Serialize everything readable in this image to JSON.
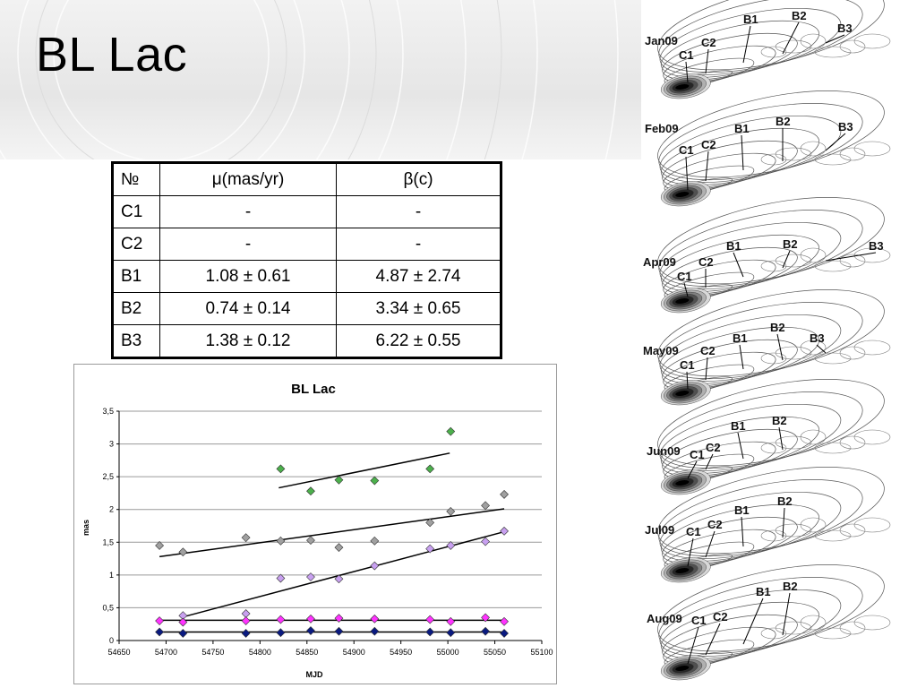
{
  "slide": {
    "title": "BL Lac"
  },
  "table": {
    "headers": [
      "№",
      "μ(mas/yr)",
      "β(c)"
    ],
    "rows": [
      [
        "C1",
        "-",
        "-"
      ],
      [
        "C2",
        "-",
        "-"
      ],
      [
        "B1",
        "1.08 ± 0.61",
        "4.87 ± 2.74"
      ],
      [
        "B2",
        "0.74 ± 0.14",
        "3.34 ± 0.65"
      ],
      [
        "B3",
        "1.38 ± 0.12",
        "6.22 ± 0.55"
      ]
    ]
  },
  "chart_data": {
    "type": "scatter",
    "title": "BL Lac",
    "xlabel": "MJD",
    "ylabel": "mas",
    "xlim": [
      54650,
      55100
    ],
    "ylim": [
      0,
      3.5
    ],
    "xticks": [
      "54650",
      "54700",
      "54750",
      "54800",
      "54850",
      "54900",
      "54950",
      "55000",
      "55050",
      "55100"
    ],
    "yticks": [
      "0",
      "0,5",
      "1",
      "1,5",
      "2",
      "2,5",
      "3",
      "3,5"
    ],
    "xticks_values": [
      54650,
      54700,
      54750,
      54800,
      54850,
      54900,
      54950,
      55000,
      55050,
      55100
    ],
    "yticks_values": [
      0,
      0.5,
      1,
      1.5,
      2,
      2.5,
      3,
      3.5
    ],
    "grid": "horizontal",
    "series": [
      {
        "color": "#4cb04c",
        "points": [
          [
            54822,
            2.62
          ],
          [
            54854,
            2.28
          ],
          [
            54884,
            2.45
          ],
          [
            54922,
            2.44
          ],
          [
            54981,
            2.62
          ],
          [
            55003,
            3.19
          ]
        ],
        "fit": [
          [
            54820,
            2.33
          ],
          [
            55002,
            2.86
          ]
        ]
      },
      {
        "color": "#a0a0a0",
        "points": [
          [
            54693,
            1.45
          ],
          [
            54718,
            1.35
          ],
          [
            54785,
            1.57
          ],
          [
            54822,
            1.52
          ],
          [
            54854,
            1.53
          ],
          [
            54884,
            1.42
          ],
          [
            54922,
            1.52
          ],
          [
            54981,
            1.8
          ],
          [
            55003,
            1.97
          ],
          [
            55040,
            2.06
          ],
          [
            55060,
            2.23
          ]
        ],
        "fit": [
          [
            54693,
            1.28
          ],
          [
            55060,
            2.01
          ]
        ]
      },
      {
        "color": "#c8a0f0",
        "points": [
          [
            54718,
            0.38
          ],
          [
            54785,
            0.41
          ],
          [
            54822,
            0.95
          ],
          [
            54854,
            0.97
          ],
          [
            54884,
            0.94
          ],
          [
            54922,
            1.14
          ],
          [
            54981,
            1.4
          ],
          [
            55003,
            1.45
          ],
          [
            55040,
            1.51
          ],
          [
            55060,
            1.67
          ]
        ],
        "fit": [
          [
            54718,
            0.36
          ],
          [
            55060,
            1.66
          ]
        ]
      },
      {
        "color": "#ff33ff",
        "points": [
          [
            54693,
            0.3
          ],
          [
            54718,
            0.28
          ],
          [
            54785,
            0.3
          ],
          [
            54822,
            0.32
          ],
          [
            54854,
            0.33
          ],
          [
            54884,
            0.34
          ],
          [
            54922,
            0.33
          ],
          [
            54981,
            0.32
          ],
          [
            55003,
            0.29
          ],
          [
            55040,
            0.35
          ],
          [
            55060,
            0.29
          ]
        ],
        "fit": [
          [
            54693,
            0.31
          ],
          [
            55060,
            0.31
          ]
        ]
      },
      {
        "color": "#0a1a80",
        "points": [
          [
            54693,
            0.13
          ],
          [
            54718,
            0.11
          ],
          [
            54785,
            0.11
          ],
          [
            54822,
            0.12
          ],
          [
            54854,
            0.15
          ],
          [
            54884,
            0.14
          ],
          [
            54922,
            0.14
          ],
          [
            54981,
            0.13
          ],
          [
            55003,
            0.12
          ],
          [
            55040,
            0.14
          ],
          [
            55060,
            0.11
          ]
        ],
        "fit": [
          [
            54693,
            0.13
          ],
          [
            55060,
            0.13
          ]
        ]
      }
    ]
  },
  "maps": [
    {
      "epoch": "Jan09",
      "labels": [
        "C1",
        "C2",
        "B1",
        "B2",
        "B3"
      ]
    },
    {
      "epoch": "Feb09",
      "labels": [
        "C1",
        "C2",
        "B1",
        "B2",
        "B3"
      ]
    },
    {
      "epoch": "Apr09",
      "labels": [
        "C1",
        "C2",
        "B1",
        "B2",
        "B3"
      ]
    },
    {
      "epoch": "May09",
      "labels": [
        "C1",
        "C2",
        "B1",
        "B2",
        "B3"
      ]
    },
    {
      "epoch": "Jun09",
      "labels": [
        "C1",
        "C2",
        "B1",
        "B2"
      ]
    },
    {
      "epoch": "Jul09",
      "labels": [
        "C1",
        "C2",
        "B1",
        "B2"
      ]
    },
    {
      "epoch": "Aug09",
      "labels": [
        "C1",
        "C2",
        "B1",
        "B2"
      ]
    }
  ]
}
